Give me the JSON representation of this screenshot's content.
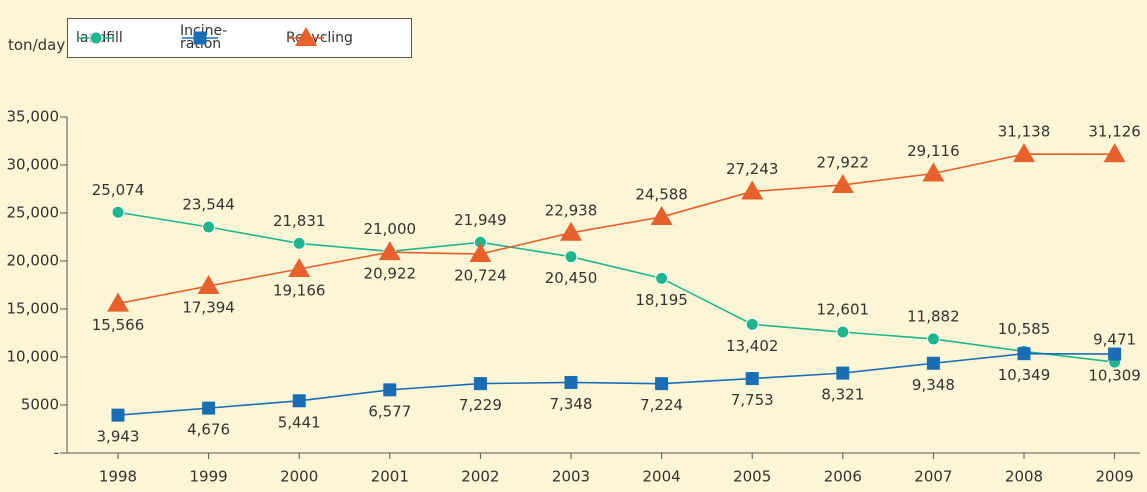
{
  "chart_data": {
    "type": "line",
    "y_unit": "ton/day",
    "categories": [
      "1998",
      "1999",
      "2000",
      "2001",
      "2002",
      "2003",
      "2004",
      "2005",
      "2006",
      "2007",
      "2008",
      "2009"
    ],
    "series": [
      {
        "name": "landfill",
        "color": "#1fb58f",
        "marker": "circle",
        "values": [
          25074,
          23544,
          21831,
          21000,
          21949,
          20450,
          18195,
          13402,
          12601,
          11882,
          10585,
          9471
        ],
        "value_labels": [
          "25,074",
          "23,544",
          "21,831",
          "21,000",
          "21,949",
          "20,450",
          "18,195",
          "13,402",
          "12,601",
          "11,882",
          "10,585",
          "9,471"
        ]
      },
      {
        "name": "Incine-\nration",
        "color": "#1a6db5",
        "marker": "square",
        "values": [
          3943,
          4676,
          5441,
          6577,
          7229,
          7348,
          7224,
          7753,
          8321,
          9348,
          10349,
          10309
        ],
        "value_labels": [
          "3,943",
          "4,676",
          "5,441",
          "6,577",
          "7,229",
          "7,348",
          "7,224",
          "7,753",
          "8,321",
          "9,348",
          "10,349",
          "10,309"
        ]
      },
      {
        "name": "Recycling",
        "color": "#e8602c",
        "marker": "triangle",
        "values": [
          15566,
          17394,
          19166,
          20922,
          20724,
          22938,
          24588,
          27243,
          27922,
          29116,
          31138,
          31126
        ],
        "value_labels": [
          "15,566",
          "17,394",
          "19,166",
          "20,922",
          "20,724",
          "22,938",
          "24,588",
          "27,243",
          "27,922",
          "29,116",
          "31,138",
          "31,126"
        ]
      }
    ],
    "ylim": [
      0,
      35000
    ],
    "yticks": [
      {
        "value": 0,
        "label": "-"
      },
      5000,
      {
        "value": 10000,
        "label": "10,000"
      },
      {
        "value": 15000,
        "label": "15,000"
      },
      {
        "value": 20000,
        "label": "20,000"
      },
      {
        "value": 25000,
        "label": "25,000"
      },
      {
        "value": 30000,
        "label": "30,000"
      },
      {
        "value": 35000,
        "label": "35,000"
      }
    ],
    "grid": false
  }
}
